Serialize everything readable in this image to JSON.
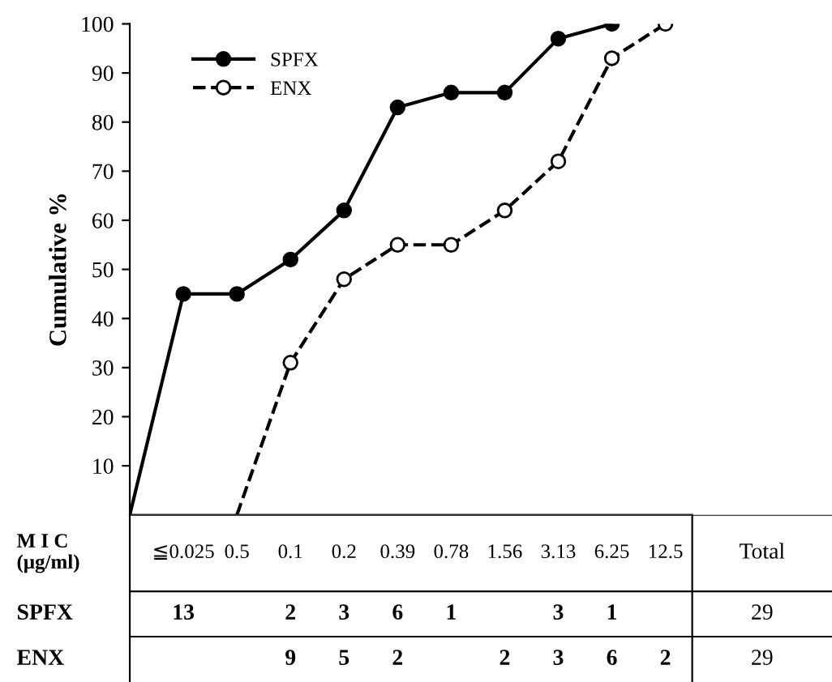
{
  "chart_data": [
    {
      "type": "line",
      "ylabel": "Cumulative %",
      "categories": [
        null,
        null,
        null,
        null,
        null,
        null,
        null,
        null,
        null,
        null,
        null
      ],
      "series": [
        {
          "name": "SPFX",
          "color": "#000000",
          "line_style": "solid",
          "values": [
            0,
            45,
            45,
            52,
            62,
            83,
            86,
            86,
            97,
            100,
            null
          ]
        },
        {
          "name": "ENX",
          "color": "#000000",
          "line_style": "dashed",
          "values": [
            null,
            null,
            0,
            31,
            48,
            55,
            55,
            62,
            72,
            93,
            100
          ]
        }
      ],
      "marker": "circle",
      "ylim": [
        0,
        100
      ],
      "yticks": [
        10,
        20,
        30,
        40,
        50,
        60,
        70,
        80,
        90,
        100
      ],
      "legend": "top left",
      "tick_labels": "y"
    },
    {
      "type": "heatmap",
      "xlabel": "M I C\n(μg/ml)",
      "categories": [
        "≦0.025",
        "0.5",
        "0.1",
        "0.2",
        "0.39",
        "0.78",
        "1.56",
        "3.13",
        "6.25",
        "12.5",
        "Total"
      ],
      "y_categories": [
        "SPFX",
        "ENX"
      ],
      "cells": [
        [
          13,
          null,
          2,
          3,
          6,
          1,
          null,
          3,
          1,
          null,
          29
        ],
        [
          null,
          null,
          9,
          5,
          2,
          null,
          2,
          3,
          6,
          2,
          29
        ]
      ],
      "data_labels": true
    }
  ]
}
